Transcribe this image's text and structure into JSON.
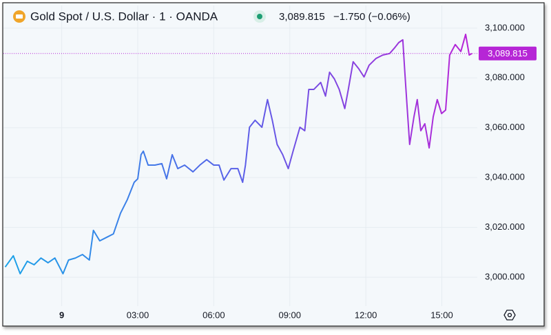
{
  "chart_data": {
    "type": "line",
    "title": "Gold Spot / U.S. Dollar · 1 · OANDA",
    "change_label": "−1.750 (−0.06%)",
    "last": {
      "value": 3089.815,
      "label": "3,089.815"
    },
    "last_color": "#b626d6",
    "colors": [
      "#1aa3e8",
      "#5a5fe8",
      "#bb22d6"
    ],
    "x": [
      -2.23,
      -1.91,
      -1.64,
      -1.36,
      -1.09,
      -0.82,
      -0.54,
      -0.27,
      0.05,
      0.27,
      0.54,
      0.82,
      1.09,
      1.25,
      1.5,
      1.77,
      2.04,
      2.32,
      2.59,
      2.86,
      3.0,
      3.13,
      3.22,
      3.41,
      3.68,
      3.95,
      4.14,
      4.36,
      4.58,
      4.85,
      5.18,
      5.45,
      5.72,
      6.0,
      6.21,
      6.4,
      6.68,
      6.95,
      7.14,
      7.25,
      7.41,
      7.63,
      7.9,
      8.12,
      8.31,
      8.5,
      8.72,
      8.94,
      9.13,
      9.4,
      9.59,
      9.75,
      9.95,
      10.22,
      10.41,
      10.57,
      10.76,
      10.95,
      11.17,
      11.31,
      11.5,
      11.72,
      11.93,
      12.13,
      12.4,
      12.67,
      12.94,
      13.13,
      13.3,
      13.46,
      13.54,
      13.62,
      13.73,
      13.9,
      14.03,
      14.17,
      14.33,
      14.5,
      14.66,
      14.82,
      14.99,
      15.15,
      15.31,
      15.53,
      15.75,
      15.94,
      16.08,
      16.19
    ],
    "values": [
      3004.1,
      3008.6,
      3001.4,
      3006.4,
      3005.0,
      3007.7,
      3005.8,
      3007.7,
      3001.4,
      3006.9,
      3007.7,
      3009.1,
      3006.9,
      3018.8,
      3014.6,
      3016.0,
      3017.4,
      3025.7,
      3031.2,
      3038.1,
      3039.5,
      3049.2,
      3050.6,
      3045.0,
      3045.0,
      3045.6,
      3039.5,
      3049.2,
      3043.6,
      3045.0,
      3042.3,
      3045.0,
      3047.2,
      3045.0,
      3045.0,
      3039.0,
      3043.6,
      3043.6,
      3038.1,
      3045.0,
      3060.2,
      3063.0,
      3060.2,
      3071.3,
      3063.0,
      3053.3,
      3049.2,
      3043.6,
      3050.6,
      3060.2,
      3058.8,
      3075.4,
      3075.4,
      3078.2,
      3072.7,
      3082.3,
      3079.6,
      3075.4,
      3067.7,
      3075.4,
      3086.5,
      3083.7,
      3080.4,
      3085.1,
      3087.8,
      3089.2,
      3089.8,
      3092.0,
      3094.2,
      3095.3,
      3082.3,
      3069.9,
      3053.3,
      3064.4,
      3071.3,
      3058.8,
      3061.6,
      3051.9,
      3064.4,
      3071.3,
      3065.7,
      3067.1,
      3089.2,
      3093.4,
      3090.6,
      3097.5,
      3089.2,
      3089.815
    ],
    "xlim": [
      -2.3,
      16.4
    ],
    "xticks": [
      {
        "value": 0,
        "label": "9"
      },
      {
        "value": 3,
        "label": "03:00"
      },
      {
        "value": 6,
        "label": "06:00"
      },
      {
        "value": 9,
        "label": "09:00"
      },
      {
        "value": 12,
        "label": "12:00"
      },
      {
        "value": 15,
        "label": "15:00"
      }
    ],
    "ylim": [
      2988.4,
      3103
    ],
    "yticks": [
      {
        "value": 3000,
        "label": "3,000.000"
      },
      {
        "value": 3020,
        "label": "3,020.000"
      },
      {
        "value": 3040,
        "label": "3,040.000"
      },
      {
        "value": 3060,
        "label": "3,060.000"
      },
      {
        "value": 3080,
        "label": "3,080.000"
      },
      {
        "value": 3100,
        "label": "3,100.000"
      }
    ],
    "grid": true
  }
}
